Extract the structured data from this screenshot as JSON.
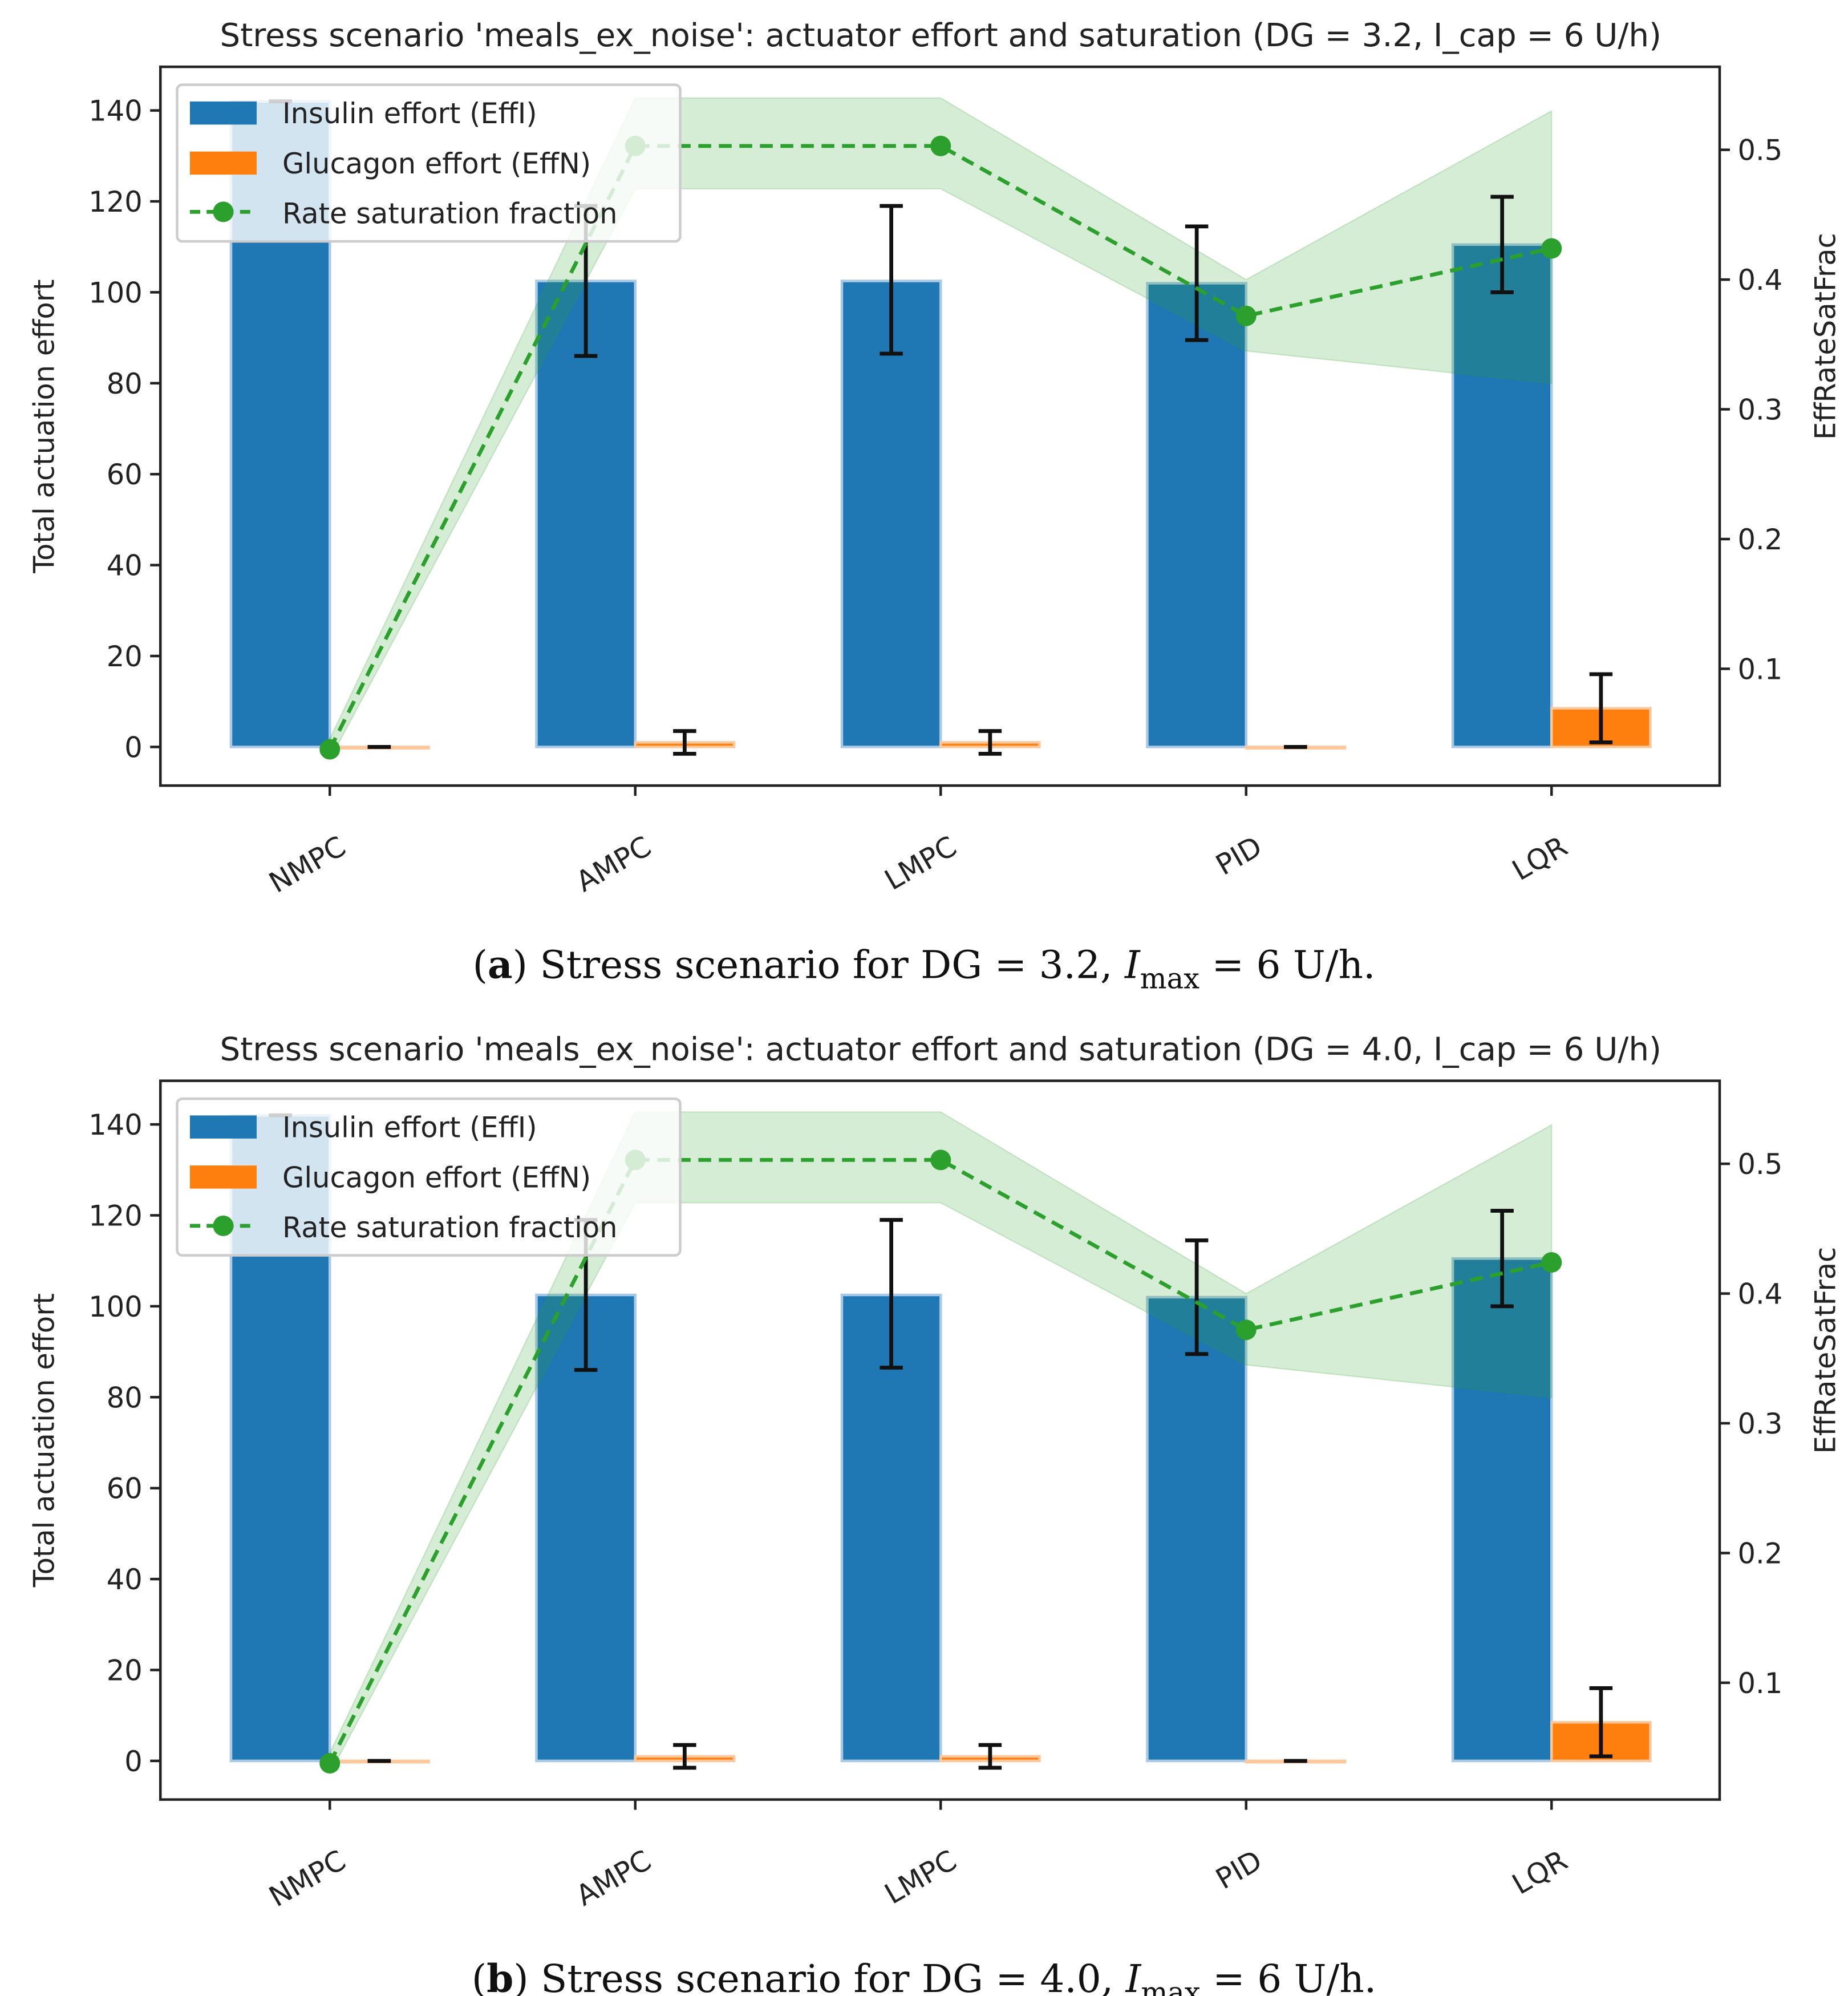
{
  "colors": {
    "insulin": "#1f77b4",
    "glucagon": "#ff7f0e",
    "sat": "#2ca02c",
    "band": "#2ca02c"
  },
  "chart_data": [
    {
      "type": "bar",
      "title": "Stress scenario 'meals_ex_noise': actuator effort and saturation (DG = 3.2, I_cap = 6 U/h)",
      "caption": {
        "label": "a",
        "text": " Stress scenario for DG = 3.2, ",
        "imax": "I",
        "sub": "max",
        "rest": " = 6 U/h."
      },
      "ylabel": "Total actuation effort",
      "y2label": "EffRateSatFrac",
      "categories": [
        "NMPC",
        "AMPC",
        "LMPC",
        "PID",
        "LQR"
      ],
      "ylim": [
        -8.5,
        149.6
      ],
      "y2lim": [
        0.01,
        0.564
      ],
      "yticks": [
        0,
        20,
        40,
        60,
        80,
        100,
        120,
        140
      ],
      "y2ticks": [
        0.1,
        0.2,
        0.3,
        0.4,
        0.5
      ],
      "y2tick_labels": [
        "0.1",
        "0.2",
        "0.3",
        "0.4",
        "0.5"
      ],
      "legend": {
        "placement": "top-left",
        "entries": [
          "Insulin effort (EffI)",
          "Glucagon effort (EffN)",
          "Rate saturation fraction"
        ]
      },
      "series": [
        {
          "name": "Insulin effort (EffI)",
          "values": [
            142,
            102.5,
            102.5,
            102,
            110.5
          ],
          "err_low": [
            142,
            86,
            86.5,
            89.5,
            100
          ],
          "err_high": [
            142,
            119,
            119,
            114.5,
            121
          ]
        },
        {
          "name": "Glucagon effort (EffN)",
          "values": [
            0,
            1,
            1,
            0,
            8.5
          ],
          "err_low": [
            0,
            -1.5,
            -1.5,
            0,
            1
          ],
          "err_high": [
            0,
            3.5,
            3.5,
            0,
            16
          ]
        },
        {
          "name": "Rate saturation fraction",
          "axis": "right",
          "values": [
            0.038,
            0.503,
            0.503,
            0.372,
            0.424
          ],
          "band_low": [
            0.03,
            0.47,
            0.47,
            0.345,
            0.32
          ],
          "band_high": [
            0.046,
            0.54,
            0.54,
            0.4,
            0.53
          ]
        }
      ]
    },
    {
      "type": "bar",
      "title": "Stress scenario 'meals_ex_noise': actuator effort and saturation (DG = 4.0, I_cap = 6 U/h)",
      "caption": {
        "label": "b",
        "text": " Stress scenario for DG = 4.0, ",
        "imax": "I",
        "sub": "max",
        "rest": " = 6 U/h."
      },
      "ylabel": "Total actuation effort",
      "y2label": "EffRateSatFrac",
      "categories": [
        "NMPC",
        "AMPC",
        "LMPC",
        "PID",
        "LQR"
      ],
      "ylim": [
        -8.5,
        149.6
      ],
      "y2lim": [
        0.01,
        0.564
      ],
      "yticks": [
        0,
        20,
        40,
        60,
        80,
        100,
        120,
        140
      ],
      "y2ticks": [
        0.1,
        0.2,
        0.3,
        0.4,
        0.5
      ],
      "y2tick_labels": [
        "0.1",
        "0.2",
        "0.3",
        "0.4",
        "0.5"
      ],
      "legend": {
        "placement": "top-left",
        "entries": [
          "Insulin effort (EffI)",
          "Glucagon effort (EffN)",
          "Rate saturation fraction"
        ]
      },
      "series": [
        {
          "name": "Insulin effort (EffI)",
          "values": [
            142,
            102.5,
            102.5,
            102,
            110.5
          ],
          "err_low": [
            142,
            86,
            86.5,
            89.5,
            100
          ],
          "err_high": [
            142,
            119,
            119,
            114.5,
            121
          ]
        },
        {
          "name": "Glucagon effort (EffN)",
          "values": [
            0,
            1,
            1,
            0,
            8.5
          ],
          "err_low": [
            0,
            -1.5,
            -1.5,
            0,
            1
          ],
          "err_high": [
            0,
            3.5,
            3.5,
            0,
            16
          ]
        },
        {
          "name": "Rate saturation fraction",
          "axis": "right",
          "values": [
            0.038,
            0.503,
            0.503,
            0.372,
            0.424
          ],
          "band_low": [
            0.03,
            0.47,
            0.47,
            0.345,
            0.32
          ],
          "band_high": [
            0.046,
            0.54,
            0.54,
            0.4,
            0.53
          ]
        }
      ]
    }
  ]
}
